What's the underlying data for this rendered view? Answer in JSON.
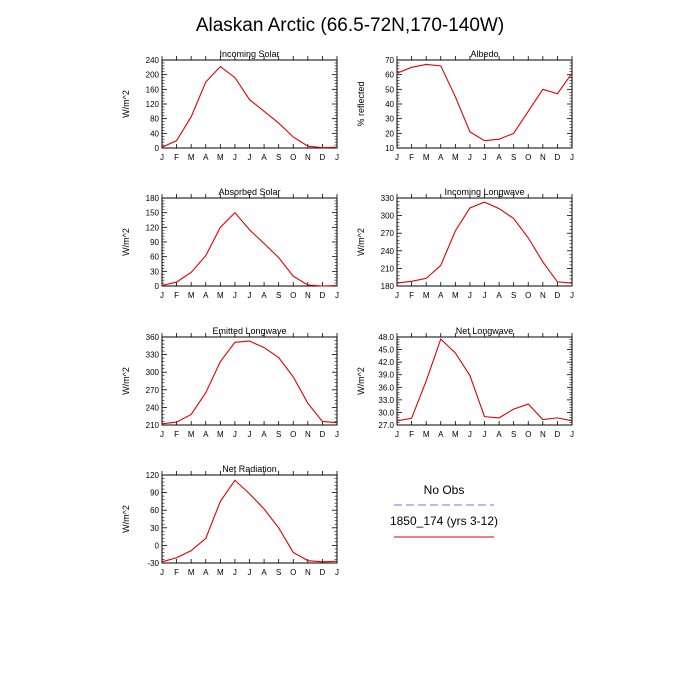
{
  "figure": {
    "title": "Alaskan Arctic (66.5-72N,170-140W)",
    "legend": [
      {
        "label": "No Obs",
        "color": "#6f6fff",
        "dash": true
      },
      {
        "label": "1850_174 (yrs 3-12)",
        "color": "#e00000",
        "dash": false
      }
    ]
  },
  "months": [
    "J",
    "F",
    "M",
    "A",
    "M",
    "J",
    "J",
    "A",
    "S",
    "O",
    "N",
    "D",
    "J"
  ],
  "chart_data": [
    {
      "type": "line",
      "title": "Incoming Solar",
      "ylabel": "W/m^2",
      "ylim": [
        0,
        240
      ],
      "yticks": [
        "0",
        "40",
        "80",
        "120",
        "160",
        "200",
        "240"
      ],
      "series": [
        {
          "color": "#e00000",
          "values": [
            2,
            20,
            85,
            180,
            222,
            192,
            132,
            100,
            68,
            30,
            5,
            1,
            2
          ]
        }
      ]
    },
    {
      "type": "line",
      "title": "Albedo",
      "ylabel": "% reflected",
      "ylim": [
        10,
        70
      ],
      "yticks": [
        "10",
        "20",
        "30",
        "40",
        "50",
        "60",
        "70"
      ],
      "series": [
        {
          "color": "#e00000",
          "values": [
            61,
            65,
            67,
            66,
            45,
            21,
            15,
            16,
            20,
            35,
            50,
            47,
            61
          ]
        }
      ]
    },
    {
      "type": "line",
      "title": "Absorbed Solar",
      "ylabel": "W/m^2",
      "ylim": [
        0,
        180
      ],
      "yticks": [
        "0",
        "30",
        "60",
        "90",
        "120",
        "150",
        "180"
      ],
      "series": [
        {
          "color": "#e00000",
          "values": [
            1,
            8,
            28,
            62,
            120,
            150,
            115,
            87,
            58,
            20,
            2,
            0,
            1
          ]
        }
      ]
    },
    {
      "type": "line",
      "title": "Incoming Longwave",
      "ylabel": "W/m^2",
      "ylim": [
        180,
        330
      ],
      "yticks": [
        "180",
        "210",
        "240",
        "270",
        "300",
        "330"
      ],
      "series": [
        {
          "color": "#e00000",
          "values": [
            185,
            188,
            193,
            215,
            274,
            313,
            323,
            312,
            295,
            262,
            221,
            187,
            185
          ]
        }
      ]
    },
    {
      "type": "line",
      "title": "Emitted Longwave",
      "ylabel": "W/m^2",
      "ylim": [
        210,
        360
      ],
      "yticks": [
        "210",
        "240",
        "270",
        "300",
        "330",
        "360"
      ],
      "series": [
        {
          "color": "#e00000",
          "values": [
            212,
            215,
            228,
            265,
            318,
            351,
            353,
            342,
            325,
            292,
            247,
            216,
            214
          ]
        }
      ]
    },
    {
      "type": "line",
      "title": "Net Longwave",
      "ylabel": "W/m^2",
      "ylim": [
        27,
        48
      ],
      "yticks": [
        "27.0",
        "30.0",
        "33.0",
        "36.0",
        "39.0",
        "42.0",
        "45.0",
        "48.0"
      ],
      "series": [
        {
          "color": "#e00000",
          "values": [
            28,
            28.6,
            37.5,
            47.5,
            44.2,
            38.8,
            29,
            28.7,
            30.8,
            32,
            28.3,
            28.7,
            28
          ]
        }
      ]
    },
    {
      "type": "line",
      "title": "Net Radiation",
      "ylabel": "W/m^2",
      "ylim": [
        -30,
        120
      ],
      "yticks": [
        "-30",
        "0",
        "30",
        "60",
        "90",
        "120"
      ],
      "series": [
        {
          "color": "#e00000",
          "values": [
            -28,
            -21,
            -9,
            12,
            75,
            111,
            88,
            62,
            30,
            -12,
            -26,
            -28,
            -27
          ]
        }
      ]
    }
  ]
}
